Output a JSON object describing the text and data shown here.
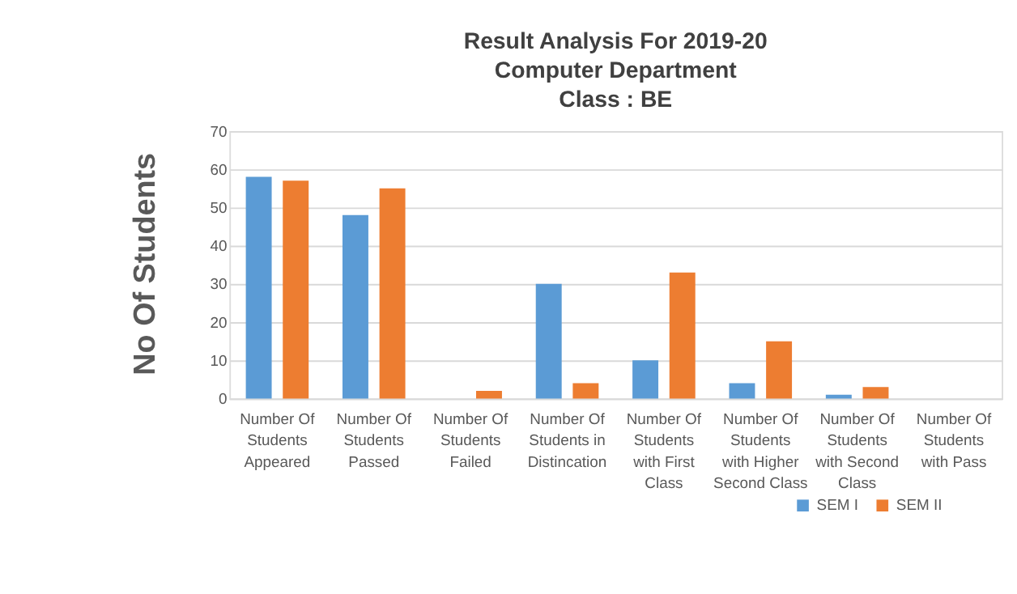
{
  "chart_data": {
    "type": "bar",
    "title": "Result Analysis For 2019-20\nComputer Department\nClass : BE",
    "ylabel": "No Of Students",
    "categories": [
      "Number Of Students Appeared",
      "Number Of Students Passed",
      "Number Of Students Failed",
      "Number Of Students in Distincation",
      "Number Of Students with First Class",
      "Number Of Students with Higher Second Class",
      "Number Of Students with Second Class",
      "Number Of Students with Pass"
    ],
    "series": [
      {
        "name": "SEM I",
        "color": "#5b9bd5",
        "values": [
          58,
          48,
          0,
          30,
          10,
          4,
          1,
          0
        ]
      },
      {
        "name": "SEM II",
        "color": "#ed7d31",
        "values": [
          57,
          55,
          2,
          4,
          33,
          15,
          3,
          0
        ]
      }
    ],
    "ylim": [
      0,
      70
    ],
    "yticks": [
      0,
      10,
      20,
      30,
      40,
      50,
      60,
      70
    ],
    "grid": "y",
    "legend": "bottom right"
  }
}
